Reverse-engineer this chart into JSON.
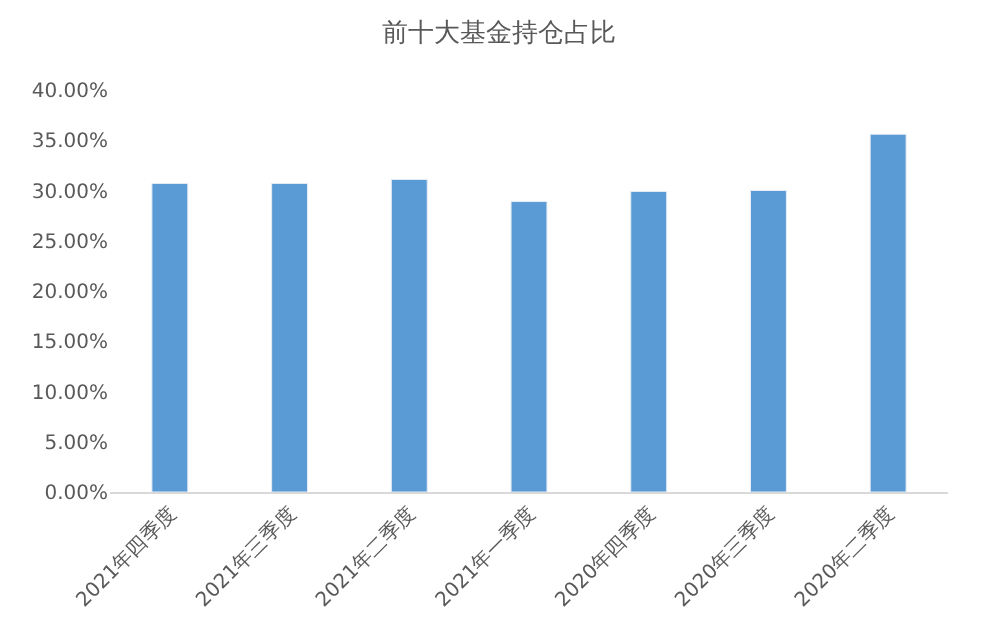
{
  "chart_data": {
    "type": "bar",
    "title": "前十大基金持仓占比",
    "categories": [
      "2021年四季度",
      "2021年三季度",
      "2021年二季度",
      "2021年一季度",
      "2020年四季度",
      "2020年三季度",
      "2020年二季度"
    ],
    "values": [
      30.7,
      30.7,
      31.1,
      28.9,
      29.9,
      30.0,
      35.6
    ],
    "color": "#5b9bd5",
    "ylim": [
      0,
      40
    ],
    "yticks": [
      {
        "value": 0,
        "label": "0.00%"
      },
      {
        "value": 5,
        "label": "5.00%"
      },
      {
        "value": 10,
        "label": "10.00%"
      },
      {
        "value": 15,
        "label": "15.00%"
      },
      {
        "value": 20,
        "label": "20.00%"
      },
      {
        "value": 25,
        "label": "25.00%"
      },
      {
        "value": 30,
        "label": "30.00%"
      },
      {
        "value": 35,
        "label": "35.00%"
      },
      {
        "value": 40,
        "label": "40.00%"
      }
    ],
    "grid": false
  }
}
